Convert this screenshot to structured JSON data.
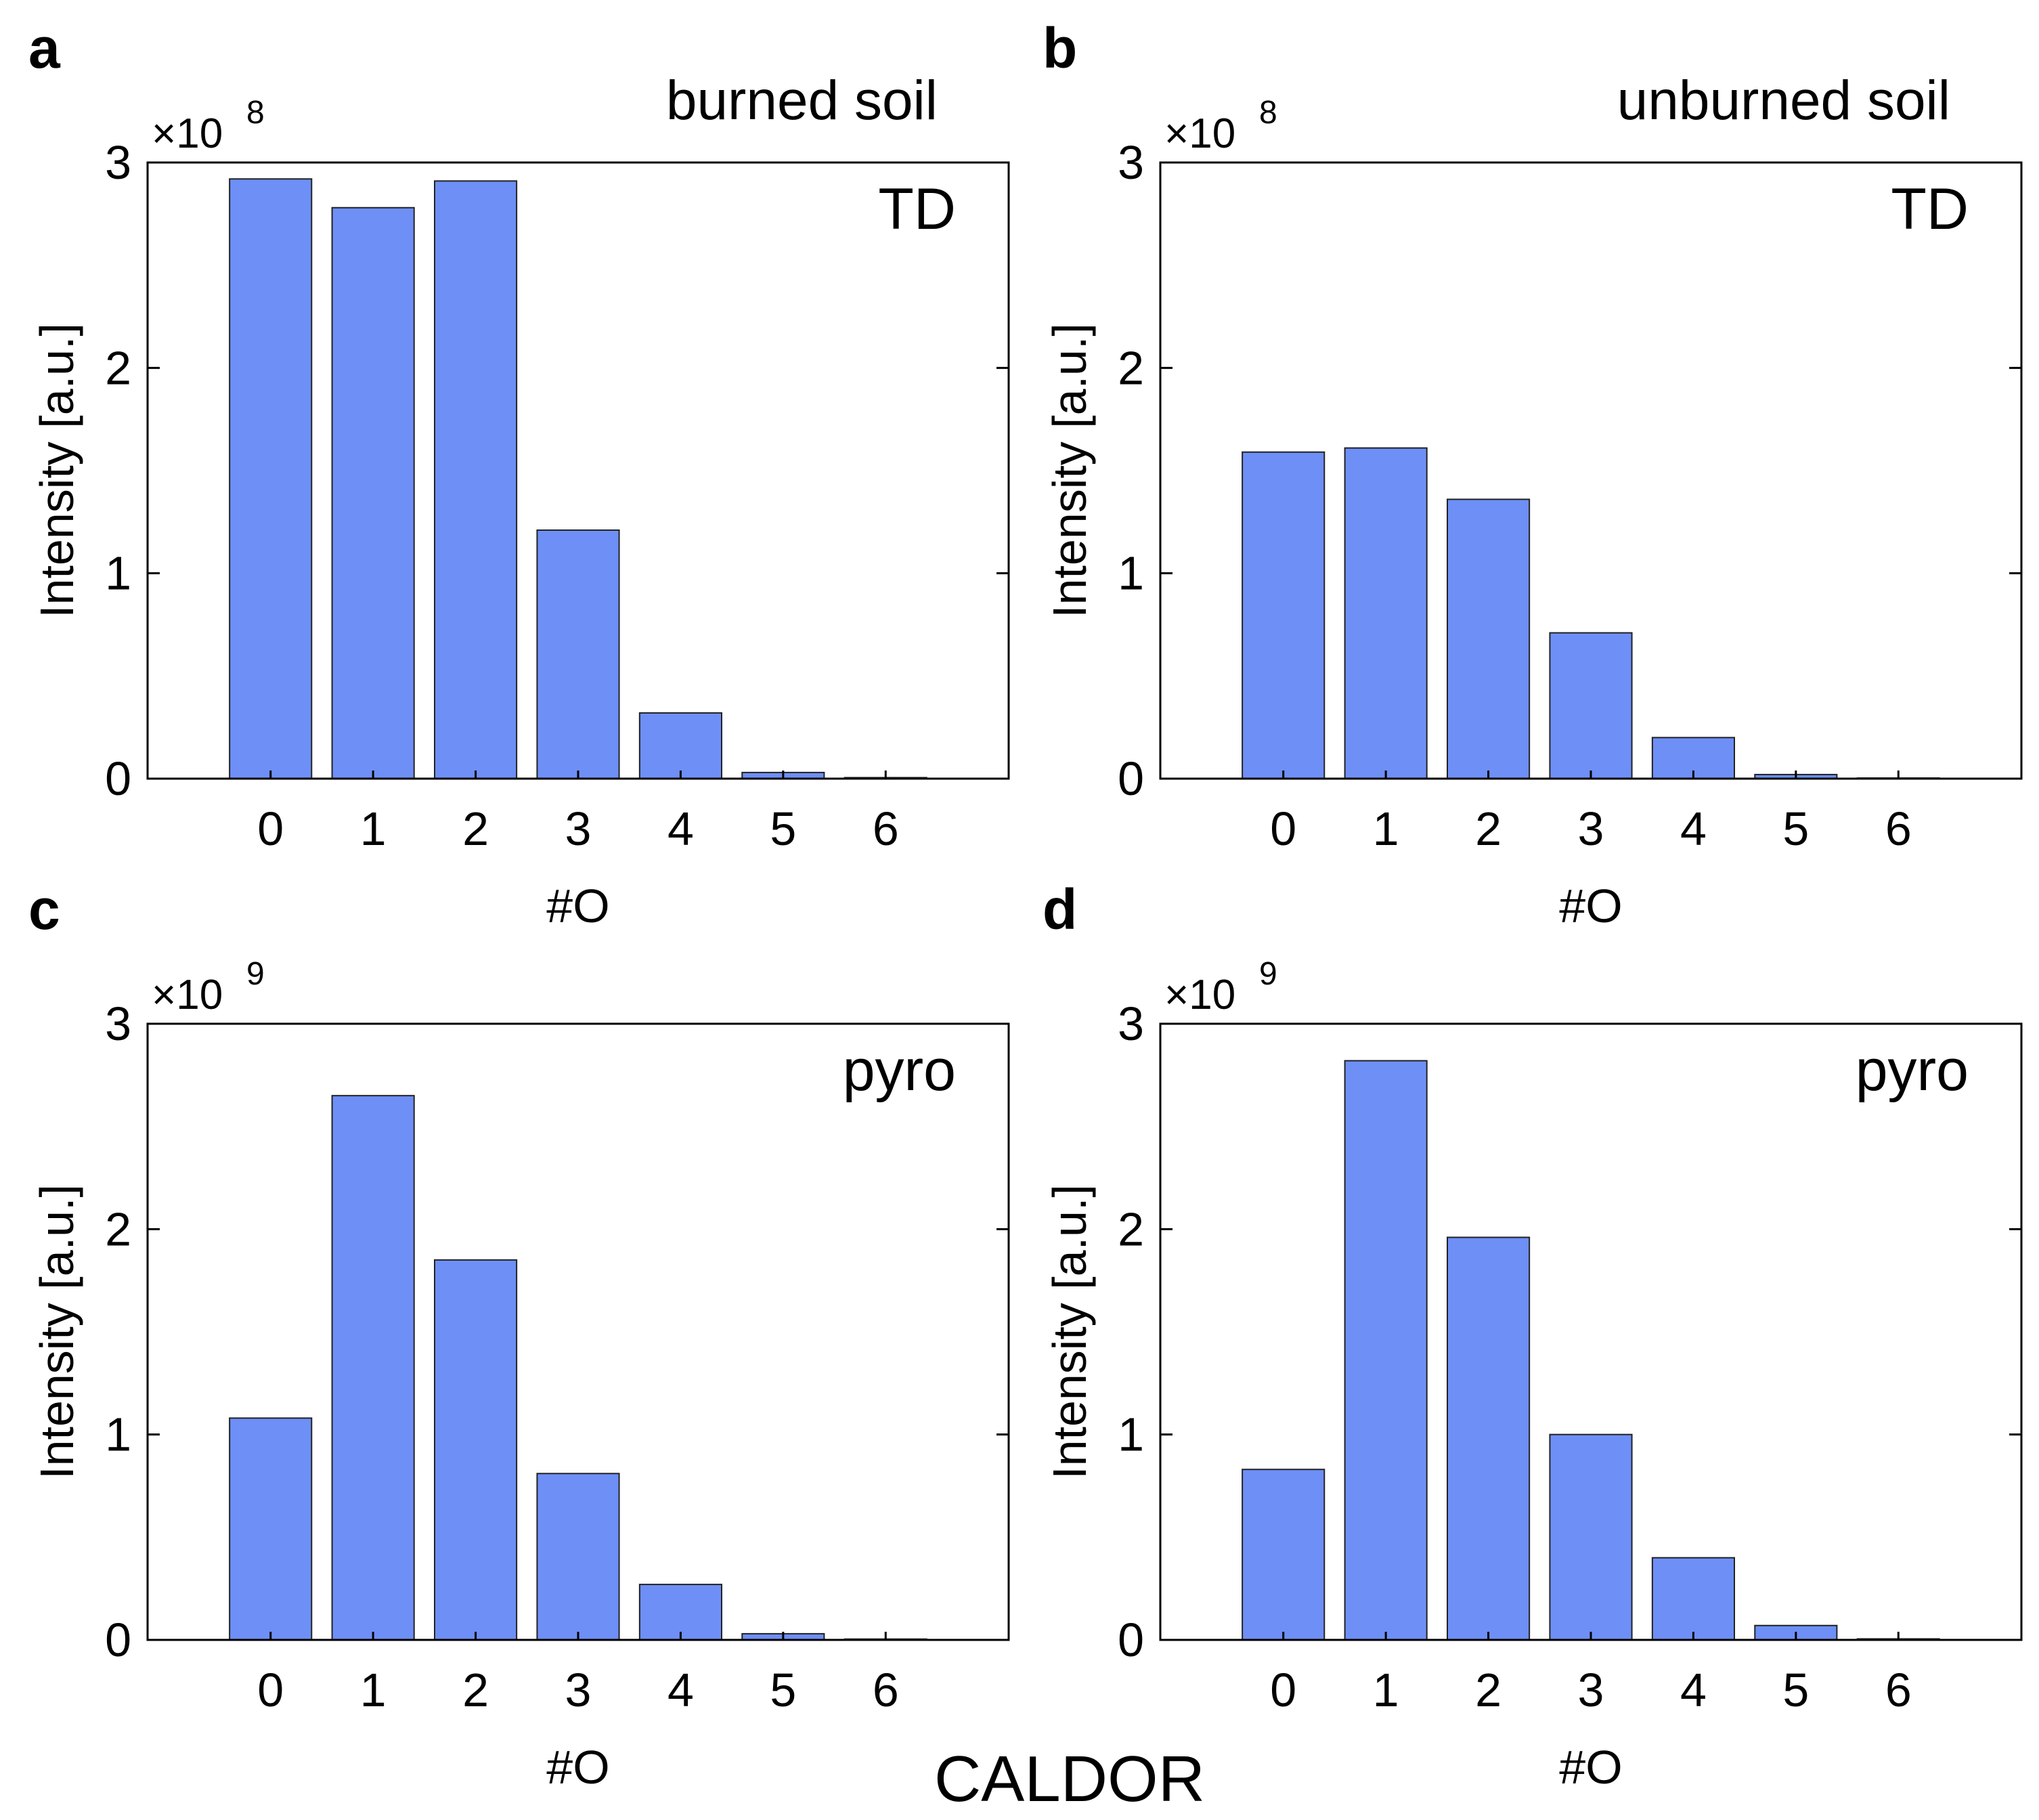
{
  "figure_caption": "CALDOR",
  "chart_data": [
    {
      "type": "bar",
      "panel": "a",
      "title": "burned soil",
      "tag": "TD",
      "xlabel": "#O",
      "ylabel": "Intensity [a.u.]",
      "y_multiplier": "×10",
      "y_exponent": "8",
      "categories": [
        "0",
        "1",
        "2",
        "3",
        "4",
        "5",
        "6"
      ],
      "values": [
        2.92,
        2.78,
        2.91,
        1.21,
        0.32,
        0.03,
        0.005
      ],
      "xlim": [
        -1.2,
        7.2
      ],
      "ylim": [
        0,
        3
      ],
      "yticks": [
        "0",
        "1",
        "2",
        "3"
      ]
    },
    {
      "type": "bar",
      "panel": "b",
      "title": "unburned soil",
      "tag": "TD",
      "xlabel": "#O",
      "ylabel": "Intensity [a.u.]",
      "y_multiplier": "×10",
      "y_exponent": "8",
      "categories": [
        "0",
        "1",
        "2",
        "3",
        "4",
        "5",
        "6"
      ],
      "values": [
        1.59,
        1.61,
        1.36,
        0.71,
        0.2,
        0.02,
        0.003
      ],
      "xlim": [
        -1.2,
        7.2
      ],
      "ylim": [
        0,
        3
      ],
      "yticks": [
        "0",
        "1",
        "2",
        "3"
      ]
    },
    {
      "type": "bar",
      "panel": "c",
      "title": "",
      "tag": "pyro",
      "xlabel": "#O",
      "ylabel": "Intensity [a.u.]",
      "y_multiplier": "×10",
      "y_exponent": "9",
      "categories": [
        "0",
        "1",
        "2",
        "3",
        "4",
        "5",
        "6"
      ],
      "values": [
        1.08,
        2.65,
        1.85,
        0.81,
        0.27,
        0.03,
        0.004
      ],
      "xlim": [
        -1.2,
        7.2
      ],
      "ylim": [
        0,
        3
      ],
      "yticks": [
        "0",
        "1",
        "2",
        "3"
      ]
    },
    {
      "type": "bar",
      "panel": "d",
      "title": "",
      "tag": "pyro",
      "xlabel": "#O",
      "ylabel": "Intensity [a.u.]",
      "y_multiplier": "×10",
      "y_exponent": "9",
      "categories": [
        "0",
        "1",
        "2",
        "3",
        "4",
        "5",
        "6"
      ],
      "values": [
        0.83,
        2.82,
        1.96,
        1.0,
        0.4,
        0.07,
        0.005
      ],
      "xlim": [
        -1.2,
        7.2
      ],
      "ylim": [
        0,
        3
      ],
      "yticks": [
        "0",
        "1",
        "2",
        "3"
      ]
    }
  ]
}
